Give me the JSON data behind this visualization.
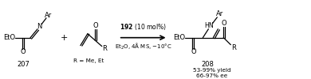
{
  "bg_color": "#ffffff",
  "fig_width": 3.9,
  "fig_height": 1.0,
  "dpi": 100,
  "compound207_label": "207",
  "compound208_label": "208",
  "yield_text": "53-99% yield",
  "ee_text": "66-97% ee",
  "r_label": "R = Me, Et",
  "arrow_label_top": "$\\mathbf{192}$ (10 mol%)",
  "arrow_label_bot": "Et$_2$O, 4Å MS, −10°C"
}
